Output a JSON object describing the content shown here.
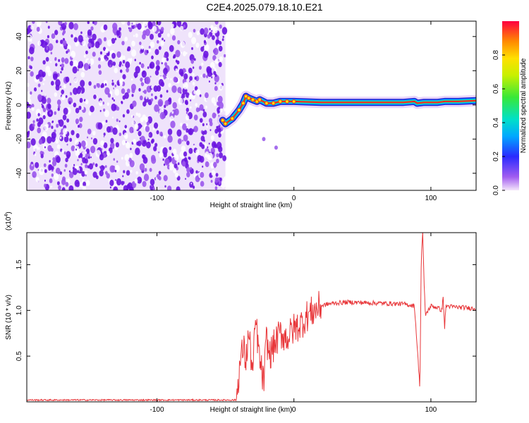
{
  "page": {
    "title": "C2E4.2025.079.18.10.E21"
  },
  "colors": {
    "snr_line": "#e8373a",
    "noise": "#7a2ee6",
    "background": "#ffffff"
  },
  "chart_data": [
    {
      "type": "heatmap",
      "title": "C2E4.2025.079.18.10.E21",
      "xlabel": "Height of straight line (km)",
      "ylabel": "Frequency (Hz)",
      "xlim": [
        -195,
        133
      ],
      "ylim": [
        -50,
        49
      ],
      "xticks": [
        -100,
        0,
        100
      ],
      "xtick_labels": [
        "-100",
        "0",
        "100"
      ],
      "yticks": [
        -40,
        -20,
        0,
        20,
        40
      ],
      "ytick_labels": [
        "-40",
        "-20",
        "0",
        "20",
        "40"
      ],
      "noise_region_x": [
        -195,
        -50
      ],
      "signal_track": {
        "x": [
          -52,
          -50,
          -45,
          -40,
          -37,
          -35,
          -33,
          -30,
          -27,
          -25,
          -20,
          -15,
          -10,
          -5,
          0,
          20,
          40,
          60,
          80,
          88,
          90,
          95,
          105,
          110,
          120,
          133
        ],
        "frequency": [
          -9,
          -11,
          -8,
          -3,
          1,
          5,
          4,
          3,
          2,
          3,
          1,
          1,
          2,
          2,
          2,
          1.5,
          1.5,
          1.5,
          1.5,
          2,
          1,
          1.5,
          1.5,
          2,
          2,
          2.5
        ]
      },
      "isolated_blobs": [
        {
          "x": -22,
          "frequency": -20
        },
        {
          "x": -13,
          "frequency": -25
        }
      ],
      "colorbar": {
        "label": "Normalized spectral amplitude",
        "ticks": [
          "0.0",
          "0.2",
          "0.4",
          "0.6",
          "0.8"
        ],
        "range": [
          0,
          1
        ]
      },
      "grid": false
    },
    {
      "type": "line",
      "xlabel": "Height of straight line (km)",
      "ylabel": "SNR (10 * v/v)",
      "multiplier": "(x10^4)",
      "multiplier_base": "(x10",
      "multiplier_exp": "4",
      "multiplier_close": ")",
      "xlim": [
        -195,
        133
      ],
      "ylim": [
        0,
        1.85
      ],
      "xticks": [
        -100,
        0,
        100
      ],
      "xtick_labels": [
        "-100",
        "0",
        "100"
      ],
      "yticks": [
        0.5,
        1.0,
        1.5
      ],
      "ytick_labels": [
        "0.5",
        "1.0",
        "1.5"
      ],
      "series": [
        {
          "x": [
            -195,
            -120,
            -60,
            -42,
            -40,
            -37,
            -35,
            -33,
            -30,
            -28,
            -25,
            -22,
            -20,
            -18,
            -15,
            -10,
            -5,
            0,
            5,
            10,
            15,
            20,
            25,
            30,
            40,
            60,
            80,
            88,
            92,
            93,
            94,
            95,
            96,
            100,
            105,
            108,
            109,
            110,
            111,
            115,
            125,
            133
          ],
          "y": [
            0.02,
            0.02,
            0.02,
            0.02,
            0.35,
            0.6,
            0.45,
            0.75,
            0.3,
            0.9,
            0.45,
            0.2,
            0.7,
            0.5,
            0.6,
            0.75,
            0.7,
            0.8,
            0.85,
            0.95,
            1.0,
            1.05,
            1.07,
            1.08,
            1.09,
            1.08,
            1.07,
            1.05,
            0.15,
            1.6,
            1.85,
            1.3,
            0.95,
            1.05,
            1.03,
            1.0,
            1.15,
            0.8,
            1.05,
            1.04,
            1.03,
            1.02
          ]
        }
      ],
      "grid": false
    }
  ]
}
